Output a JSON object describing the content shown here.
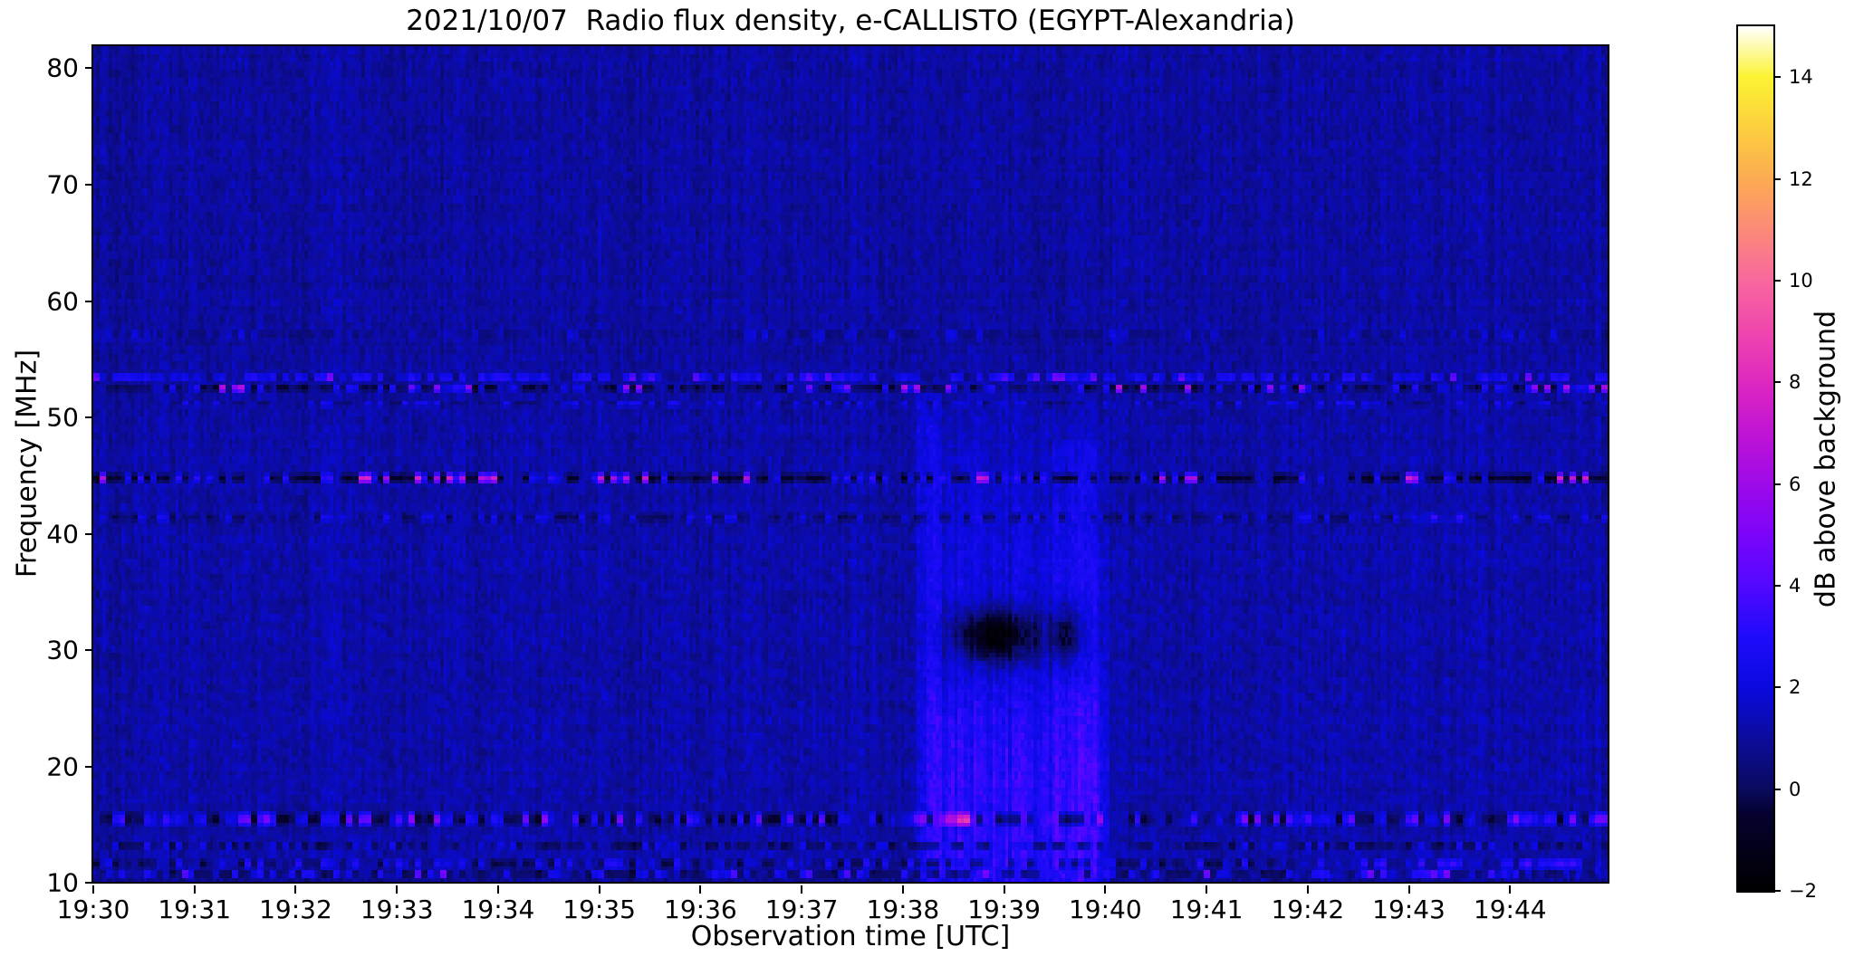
{
  "title": "2021/10/07  Radio flux density, e-CALLISTO (EGYPT-Alexandria)",
  "x_axis": {
    "label": "Observation time [UTC]",
    "ticks": [
      "19:30",
      "19:31",
      "19:32",
      "19:33",
      "19:34",
      "19:35",
      "19:36",
      "19:37",
      "19:38",
      "19:39",
      "19:40",
      "19:41",
      "19:42",
      "19:43",
      "19:44"
    ],
    "tick_minutes": [
      0,
      1,
      2,
      3,
      4,
      5,
      6,
      7,
      8,
      9,
      10,
      11,
      12,
      13,
      14
    ],
    "total_minutes": 15
  },
  "y_axis": {
    "label": "Frequency [MHz]",
    "ticks": [
      "80",
      "70",
      "60",
      "50",
      "40",
      "30",
      "20",
      "10"
    ],
    "tick_values": [
      80,
      70,
      60,
      50,
      40,
      30,
      20,
      10
    ],
    "min": 9.8,
    "max": 81.9
  },
  "colorbar": {
    "label": "dB above background",
    "ticks": [
      "14",
      "12",
      "10",
      "8",
      "6",
      "4",
      "2",
      "0",
      "−2"
    ],
    "tick_values": [
      14,
      12,
      10,
      8,
      6,
      4,
      2,
      0,
      -2
    ],
    "vmin": -2,
    "vmax": 15,
    "stops": [
      {
        "v": -2,
        "c": "#000000"
      },
      {
        "v": -0.5,
        "c": "#05022e"
      },
      {
        "v": 0,
        "c": "#0a0a5e"
      },
      {
        "v": 1,
        "c": "#0c0c9c"
      },
      {
        "v": 2,
        "c": "#0a0ae0"
      },
      {
        "v": 3,
        "c": "#1f0bfa"
      },
      {
        "v": 4,
        "c": "#5208ff"
      },
      {
        "v": 5,
        "c": "#7c04fa"
      },
      {
        "v": 6,
        "c": "#9d0ae8"
      },
      {
        "v": 7,
        "c": "#bf14d4"
      },
      {
        "v": 8,
        "c": "#de28c0"
      },
      {
        "v": 9,
        "c": "#ef46ae"
      },
      {
        "v": 10,
        "c": "#f8689e"
      },
      {
        "v": 11,
        "c": "#fb8a78"
      },
      {
        "v": 12,
        "c": "#fcab52"
      },
      {
        "v": 13,
        "c": "#fccf3e"
      },
      {
        "v": 14,
        "c": "#fbf332"
      },
      {
        "v": 15,
        "c": "#ffffff"
      }
    ]
  },
  "chart_data": {
    "type": "heatmap",
    "title": "2021/10/07  Radio flux density, e-CALLISTO (EGYPT-Alexandria)",
    "date": "2021/10/07",
    "instrument": "e-CALLISTO",
    "station": "EGYPT-Alexandria",
    "xlabel": "Observation time [UTC]",
    "ylabel": "Frequency [MHz]",
    "zlabel": "dB above background",
    "time_range_utc": [
      "19:30:00",
      "19:45:00"
    ],
    "freq_range_mhz": [
      9.8,
      81.9
    ],
    "value_range_db": [
      -2,
      15
    ],
    "background_level_db": 1.2,
    "features": {
      "rfi_lines_mhz": [
        57.0,
        53.3,
        52.4,
        51.1,
        44.6,
        41.2,
        15.2,
        12.9,
        11.4,
        10.5
      ],
      "burst": {
        "start_utc": "19:38:10",
        "end_utc": "19:40:00",
        "description": "Broadband enhancement below ~52 MHz with strong absorption patch",
        "absorption_band_mhz": [
          27.5,
          34.5
        ],
        "hotspot": {
          "time_utc": "19:38:25",
          "freq_mhz": 15.2,
          "peak_db": 11
        }
      },
      "bright_low_band": {
        "freq_mhz": [
          10.2,
          11.8
        ],
        "after_utc": "19:42",
        "level_db": 3
      },
      "blue_segment_41mhz_utc": [
        "19:43:05",
        "19:43:35"
      ]
    },
    "render": {
      "cols": 480,
      "rows": 212,
      "base_db": 1.15,
      "col_streak_amp": 0.45,
      "pix_noise_amp": 0.8,
      "row_noise_amp": 0.18,
      "upper_quiet_above_mhz": 54,
      "upper_quiet_delta": -0.12,
      "ripple_below_mhz": 42,
      "ripple_amp": 0.1,
      "bottom_dark_below_mhz": 10.15,
      "bands": [
        {
          "f": 57.0,
          "hw": 0.5,
          "p_dark": 0.45,
          "dark": [
            0.1,
            0.7
          ],
          "p_br": 0.18,
          "br": [
            1.8,
            2.6
          ]
        },
        {
          "f": 53.3,
          "hw": 0.4,
          "p_dark": 0.2,
          "dark": [
            0.0,
            0.8
          ],
          "p_br": 0.6,
          "br": [
            2.2,
            4.2
          ],
          "p_hot": 0.05,
          "hot": [
            5.0,
            7.0
          ]
        },
        {
          "f": 52.4,
          "hw": 0.4,
          "p_dark": 0.55,
          "dark": [
            -1.2,
            0.4
          ],
          "p_br": 0.22,
          "br": [
            1.8,
            3.6
          ],
          "p_hot": 0.08,
          "hot": [
            5.5,
            8.5
          ]
        },
        {
          "f": 51.1,
          "hw": 0.35,
          "p_dark": 0.35,
          "dark": [
            0.0,
            0.8
          ],
          "p_br": 0.35,
          "br": [
            1.8,
            3.0
          ]
        },
        {
          "f": 44.6,
          "hw": 0.45,
          "p_dark": 0.5,
          "dark": [
            -1.6,
            -0.3
          ],
          "p_br": 0.2,
          "br": [
            2.0,
            4.0
          ],
          "p_hot": 0.14,
          "hot": [
            7.0,
            9.5
          ]
        },
        {
          "f": 41.2,
          "hw": 0.4,
          "p_dark": 0.45,
          "dark": [
            -0.6,
            0.5
          ],
          "p_br": 0.25,
          "br": [
            2.0,
            3.2
          ],
          "segments": [
            {
              "t0": 13.05,
              "t1": 13.6,
              "boost": 1.6
            }
          ]
        },
        {
          "f": 15.2,
          "hw": 0.6,
          "p_dark": 0.4,
          "dark": [
            -1.4,
            0.2
          ],
          "p_br": 0.3,
          "br": [
            2.0,
            4.5
          ],
          "p_hot": 0.12,
          "hot": [
            4.5,
            7.0
          ],
          "segments": [
            {
              "t0": 8.3,
              "t1": 8.75,
              "boost": 5.5
            },
            {
              "t0": 7.9,
              "t1": 8.12,
              "boost": 2.5
            }
          ]
        },
        {
          "f": 12.9,
          "hw": 0.45,
          "p_dark": 0.5,
          "dark": [
            -0.8,
            0.3
          ],
          "p_br": 0.22,
          "br": [
            2.0,
            3.2
          ]
        },
        {
          "f": 11.4,
          "hw": 0.5,
          "p_dark": 0.4,
          "dark": [
            -0.8,
            0.4
          ],
          "p_br": 0.3,
          "br": [
            2.0,
            3.6
          ],
          "segments": [
            {
              "t0": 11.9,
              "t1": 15,
              "boost": 1.0
            }
          ]
        },
        {
          "f": 10.5,
          "hw": 0.45,
          "p_dark": 0.45,
          "dark": [
            -1.0,
            0.3
          ],
          "p_br": 0.3,
          "br": [
            2.0,
            3.8
          ],
          "p_hot": 0.05,
          "hot": [
            4.5,
            6.5
          ],
          "segments": [
            {
              "t0": 13.05,
              "t1": 13.45,
              "boost": 3.2
            },
            {
              "t0": 11.9,
              "t1": 15,
              "boost": 0.8
            }
          ]
        }
      ],
      "burst": {
        "t0": 8.15,
        "t1": 9.98,
        "ramp_in": 0.2,
        "ramp_out": 0.12,
        "col_mod": 0.6,
        "glow": [
          [
            9.8,
            1.7
          ],
          [
            14,
            1.9
          ],
          [
            20,
            1.9
          ],
          [
            24,
            1.6
          ],
          [
            27,
            1.2
          ],
          [
            34,
            1.0
          ],
          [
            36,
            0.9
          ],
          [
            40,
            0.75
          ],
          [
            44,
            0.55
          ],
          [
            47,
            0.4
          ],
          [
            50,
            0.25
          ],
          [
            52,
            0.1
          ],
          [
            53,
            0
          ]
        ],
        "edges": [
          {
            "t0": 8.17,
            "t1": 8.4,
            "extra": 0.7,
            "fmax": 52
          },
          {
            "t0": 9.5,
            "t1": 9.95,
            "extra": 0.45,
            "fmax": 48
          }
        ],
        "absorption": {
          "f_center": 31.0,
          "f_sigma": 2.4,
          "lobes": [
            {
              "t": 8.95,
              "sigma": 0.45,
              "depth": 4.0
            },
            {
              "t": 9.63,
              "sigma": 0.2,
              "depth": 3.0
            }
          ]
        }
      }
    }
  }
}
